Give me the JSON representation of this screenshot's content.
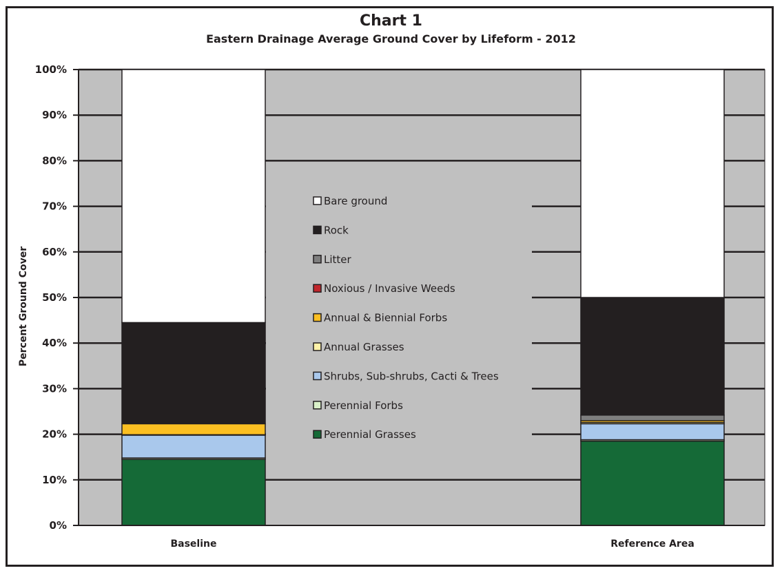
{
  "chart_data": {
    "type": "bar",
    "stacked": true,
    "title": "Chart 1",
    "subtitle": "Eastern Drainage Average Ground Cover by Lifeform - 2012",
    "ylabel": "Percent Ground Cover",
    "xlabel": "",
    "ylim": [
      0,
      100
    ],
    "yticks": [
      "0%",
      "10%",
      "20%",
      "30%",
      "40%",
      "50%",
      "60%",
      "70%",
      "80%",
      "90%",
      "100%"
    ],
    "categories": [
      "Baseline",
      "Reference Area"
    ],
    "series": [
      {
        "name": "Perennial Grasses",
        "color": "#156a37",
        "values": [
          14.5,
          18.5
        ]
      },
      {
        "name": "Perennial Forbs",
        "color": "#d9f0c8",
        "values": [
          0.3,
          0.3
        ]
      },
      {
        "name": "Shrubs, Sub-shrubs, Cacti & Trees",
        "color": "#a9c8ec",
        "values": [
          5.0,
          3.5
        ]
      },
      {
        "name": "Annual Grasses",
        "color": "#fff2a8",
        "values": [
          0.1,
          0.3
        ]
      },
      {
        "name": "Annual & Biennial Forbs",
        "color": "#fbbf22",
        "values": [
          2.4,
          0.4
        ]
      },
      {
        "name": "Noxious / Invasive Weeds",
        "color": "#c1272d",
        "values": [
          0.0,
          0.0
        ]
      },
      {
        "name": "Litter",
        "color": "#7f7f7f",
        "values": [
          0.0,
          1.2
        ]
      },
      {
        "name": "Rock",
        "color": "#231f20",
        "values": [
          22.2,
          25.8
        ]
      },
      {
        "name": "Bare ground",
        "color": "#ffffff",
        "values": [
          55.5,
          50.0
        ]
      }
    ],
    "legend_order": [
      "Bare ground",
      "Rock",
      "Litter",
      "Noxious / Invasive Weeds",
      "Annual & Biennial Forbs",
      "Annual Grasses",
      "Shrubs, Sub-shrubs, Cacti & Trees",
      "Perennial Forbs",
      "Perennial Grasses"
    ],
    "legend_position": "center",
    "grid": true,
    "plot_background": "#c0c0c0"
  }
}
